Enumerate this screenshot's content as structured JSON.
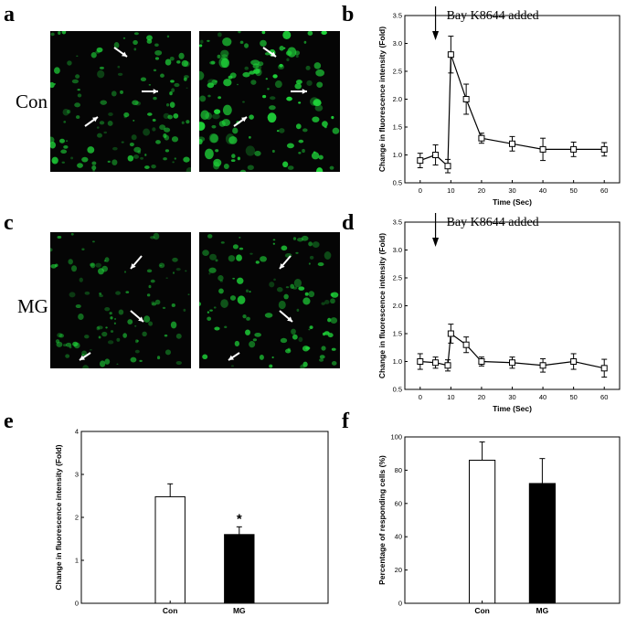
{
  "panels": {
    "a": "a",
    "b": "b",
    "c": "c",
    "d": "d",
    "e": "e",
    "f": "f"
  },
  "row_labels": {
    "con": "Con",
    "mg": "MG"
  },
  "colors": {
    "cell_green": "#1fd63a",
    "bg_black": "#050505",
    "bar_white": "#ffffff",
    "bar_black": "#000000"
  },
  "chart_data": [
    {
      "id": "b",
      "type": "line",
      "marker": "open-square",
      "x": [
        0,
        5,
        9,
        10,
        15,
        20,
        30,
        40,
        50,
        60
      ],
      "y": [
        0.9,
        1.0,
        0.8,
        2.8,
        2.0,
        1.3,
        1.2,
        1.1,
        1.1,
        1.1
      ],
      "yerr": [
        0.13,
        0.18,
        0.12,
        0.33,
        0.27,
        0.09,
        0.13,
        0.2,
        0.13,
        0.12
      ],
      "xlabel": "Time (Sec)",
      "ylabel": "Change in fluorescence intensity (Fold)",
      "xlim": [
        -5,
        65
      ],
      "ylim": [
        0.5,
        3.5
      ],
      "xticks": [
        0,
        10,
        20,
        30,
        40,
        50,
        60
      ],
      "yticks": [
        "0.5",
        "1.0",
        "1.5",
        "2.0",
        "2.5",
        "3.0",
        "3.5"
      ],
      "annotation": {
        "text": "Bay K8644 added",
        "x": 5
      }
    },
    {
      "id": "d",
      "type": "line",
      "marker": "open-square",
      "x": [
        0,
        5,
        9,
        10,
        15,
        20,
        30,
        40,
        50,
        60
      ],
      "y": [
        1.0,
        0.98,
        0.93,
        1.5,
        1.3,
        1.0,
        0.98,
        0.93,
        1.0,
        0.88
      ],
      "yerr": [
        0.14,
        0.1,
        0.1,
        0.17,
        0.14,
        0.08,
        0.1,
        0.12,
        0.14,
        0.16
      ],
      "xlabel": "Time (Sec)",
      "ylabel": "Change in fluorescence intensity (Fold)",
      "xlim": [
        -5,
        65
      ],
      "ylim": [
        0.5,
        3.5
      ],
      "xticks": [
        0,
        10,
        20,
        30,
        40,
        50,
        60
      ],
      "yticks": [
        "0.5",
        "1.0",
        "1.5",
        "2.0",
        "2.5",
        "3.0",
        "3.5"
      ],
      "annotation": {
        "text": "Bay K8644 added",
        "x": 5
      }
    },
    {
      "id": "e",
      "type": "bar",
      "categories": [
        "Con",
        "MG"
      ],
      "values": [
        2.48,
        1.6
      ],
      "errors": [
        0.3,
        0.18
      ],
      "fills": [
        "#ffffff",
        "#000000"
      ],
      "ylabel": "Change in fluorescence intensity (Fold)",
      "ylim": [
        0,
        4
      ],
      "yticks": [
        "0",
        "1",
        "2",
        "3",
        "4"
      ],
      "significance": {
        "category": "MG",
        "mark": "*"
      }
    },
    {
      "id": "f",
      "type": "bar",
      "categories": [
        "Con",
        "MG"
      ],
      "values": [
        86,
        72
      ],
      "errors": [
        11,
        15
      ],
      "fills": [
        "#ffffff",
        "#000000"
      ],
      "ylabel": "Percentage of responding cells (%)",
      "ylim": [
        0,
        100
      ],
      "yticks": [
        "0",
        "20",
        "40",
        "60",
        "80",
        "100"
      ]
    }
  ]
}
